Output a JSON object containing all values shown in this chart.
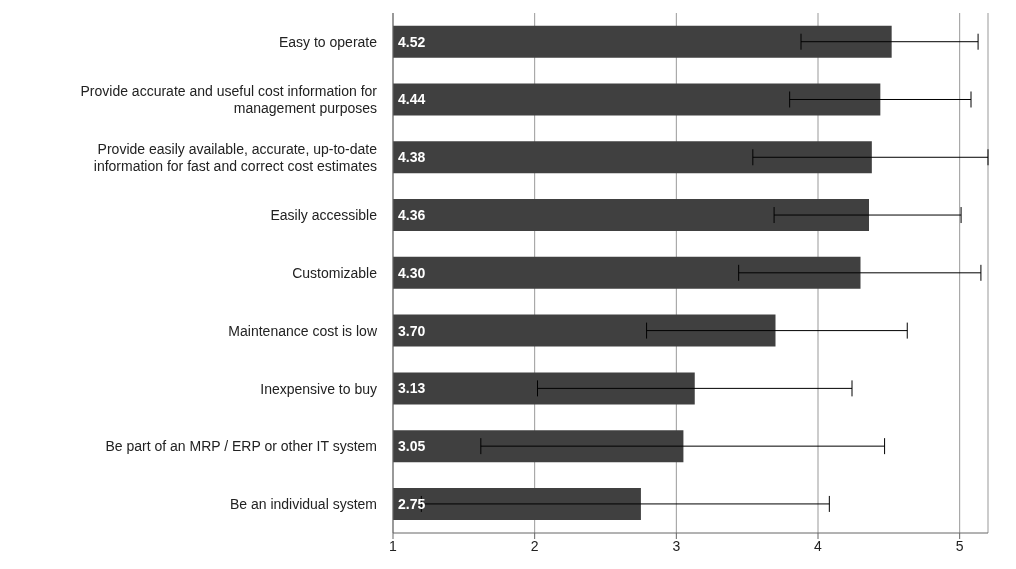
{
  "chart_data": {
    "type": "bar",
    "orientation": "horizontal",
    "categories": [
      "Easy to operate",
      "Provide accurate and useful cost information for management purposes",
      "Provide easily available, accurate, up-to-date information for fast and correct cost estimates",
      "Easily accessible",
      "Customizable",
      "Maintenance cost is low",
      "Inexpensive to buy",
      "Be part of an MRP / ERP or other IT system",
      "Be an individual system"
    ],
    "values": [
      4.52,
      4.44,
      4.38,
      4.36,
      4.3,
      3.7,
      3.13,
      3.05,
      2.75
    ],
    "value_labels": [
      "4.52",
      "4.44",
      "4.38",
      "4.36",
      "4.30",
      "3.70",
      "3.13",
      "3.05",
      "2.75"
    ],
    "errors": [
      [
        3.88,
        5.13
      ],
      [
        3.8,
        5.08
      ],
      [
        3.54,
        5.2
      ],
      [
        3.69,
        5.01
      ],
      [
        3.44,
        5.15
      ],
      [
        2.79,
        4.63
      ],
      [
        2.02,
        4.24
      ],
      [
        1.62,
        4.47
      ],
      [
        1.2,
        4.08
      ]
    ],
    "color": "#404040",
    "xlim": [
      1,
      5.2
    ],
    "xticks": [
      1,
      2,
      3,
      4,
      5
    ],
    "grid": "x"
  }
}
